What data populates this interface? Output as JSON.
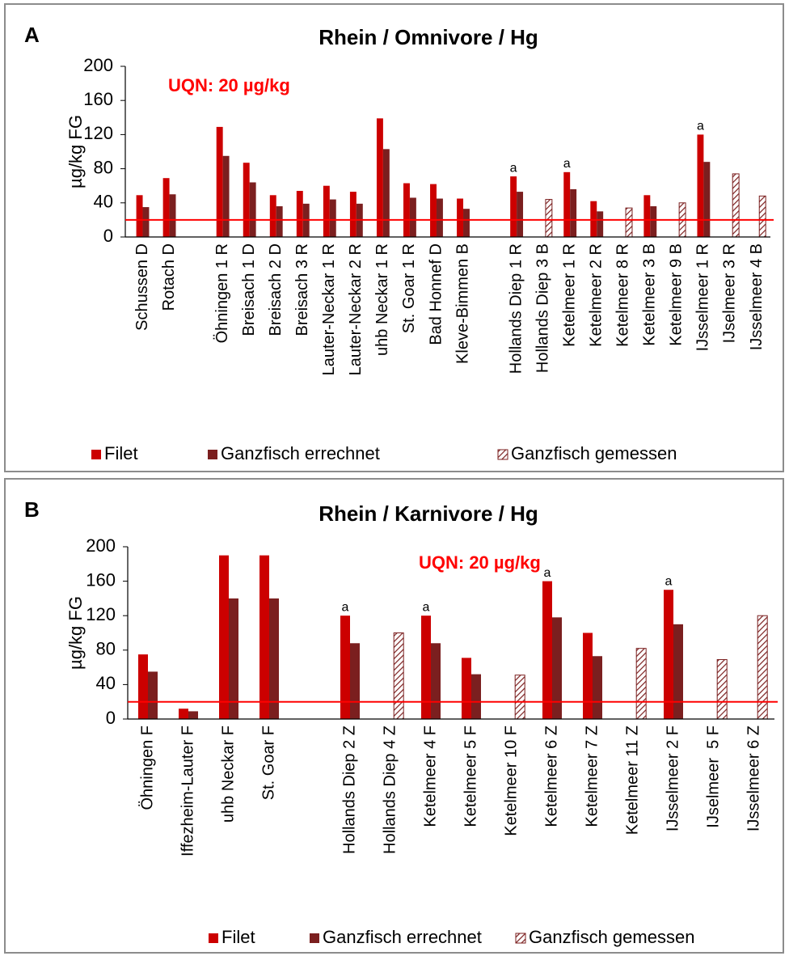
{
  "chart_data": [
    {
      "type": "bar",
      "panel_label": "A",
      "title": "Rhein / Omnivore / Hg",
      "ylabel": "µg/kg FG",
      "threshold": 20,
      "threshold_label": "UQN: 20 µg/kg",
      "threshold_color": "#ff0000",
      "ylim": [
        0,
        200
      ],
      "yticks": [
        0,
        40,
        80,
        120,
        160,
        200
      ],
      "grid": false,
      "categories": [
        "Schussen D",
        "Rotach D",
        null,
        "Öhningen 1 R",
        "Breisach 1 D",
        "Breisach 2 D",
        "Breisach 3 R",
        "Lauter-Neckar 1 R",
        "Lauter-Neckar 2 R",
        "uhb Neckar 1 R",
        "St. Goar 1 R",
        "Bad Honnef D",
        "Kleve-Bimmen B",
        null,
        "Hollands Diep 1 R",
        "Hollands Diep 3 B",
        "Ketelmeer 1 R",
        "Ketelmeer 2 R",
        "Ketelmeer 8 R",
        "Ketelmeer 3 B",
        "Ketelmeer 9 B",
        "IJsselmeer 1 R",
        "IJselmeer 3 R",
        "IJsselmeer 4 B"
      ],
      "series": [
        {
          "name": "Filet",
          "color": "#cc0000",
          "values": [
            49,
            69,
            null,
            129,
            87,
            49,
            54,
            60,
            53,
            139,
            63,
            62,
            45,
            null,
            71,
            null,
            76,
            42,
            null,
            49,
            null,
            120,
            null,
            null
          ]
        },
        {
          "name": "Ganzfisch errechnet",
          "color": "#7b1f1f",
          "values": [
            35,
            50,
            null,
            95,
            64,
            36,
            39,
            44,
            39,
            103,
            46,
            45,
            33,
            null,
            53,
            null,
            56,
            30,
            null,
            36,
            null,
            88,
            null,
            null
          ]
        },
        {
          "name": "Ganzfisch gemessen",
          "color": "#7b1f1f",
          "pattern": "hatch",
          "values": [
            null,
            null,
            null,
            null,
            null,
            null,
            null,
            null,
            null,
            null,
            null,
            null,
            null,
            null,
            null,
            44,
            null,
            null,
            34,
            null,
            40,
            null,
            74,
            48
          ]
        }
      ],
      "note_labels": [
        null,
        null,
        null,
        null,
        null,
        null,
        null,
        null,
        null,
        null,
        null,
        null,
        null,
        null,
        "a",
        null,
        "a",
        null,
        null,
        null,
        null,
        "a",
        null,
        null
      ]
    },
    {
      "type": "bar",
      "panel_label": "B",
      "title": "Rhein / Karnivore / Hg",
      "ylabel": "µg/kg FG",
      "threshold": 20,
      "threshold_label": "UQN: 20 µg/kg",
      "threshold_color": "#ff0000",
      "ylim": [
        0,
        200
      ],
      "yticks": [
        0,
        40,
        80,
        120,
        160,
        200
      ],
      "grid": false,
      "categories": [
        "Öhningen F",
        "Iffezheim-Lauter F",
        "uhb Neckar F",
        "St. Goar F",
        null,
        "Hollands Diep 2 Z",
        "Hollands Diep 4 Z",
        "Ketelmeer 4 F",
        "Ketelmeer 5 F",
        "Ketelmeer 10 F",
        "Ketelmeer 6 Z",
        "Ketelmeer 7 Z",
        "Ketelmeer 11 Z",
        "IJsselmeer 2 F",
        "IJselmeer  5 F",
        "IJsselmeer 6 Z"
      ],
      "series": [
        {
          "name": "Filet",
          "color": "#cc0000",
          "values": [
            75,
            12,
            190,
            190,
            null,
            120,
            null,
            120,
            71,
            null,
            160,
            100,
            null,
            150,
            null,
            null
          ]
        },
        {
          "name": "Ganzfisch errechnet",
          "color": "#7b1f1f",
          "values": [
            55,
            9,
            140,
            140,
            null,
            88,
            null,
            88,
            52,
            null,
            118,
            73,
            null,
            110,
            null,
            null
          ]
        },
        {
          "name": "Ganzfisch gemessen",
          "color": "#7b1f1f",
          "pattern": "hatch",
          "values": [
            null,
            null,
            null,
            null,
            null,
            null,
            100,
            null,
            null,
            51,
            null,
            null,
            82,
            null,
            69,
            120
          ]
        }
      ],
      "note_labels": [
        null,
        null,
        null,
        null,
        null,
        "a",
        null,
        "a",
        null,
        null,
        "a",
        null,
        null,
        "a",
        null,
        null
      ]
    }
  ]
}
